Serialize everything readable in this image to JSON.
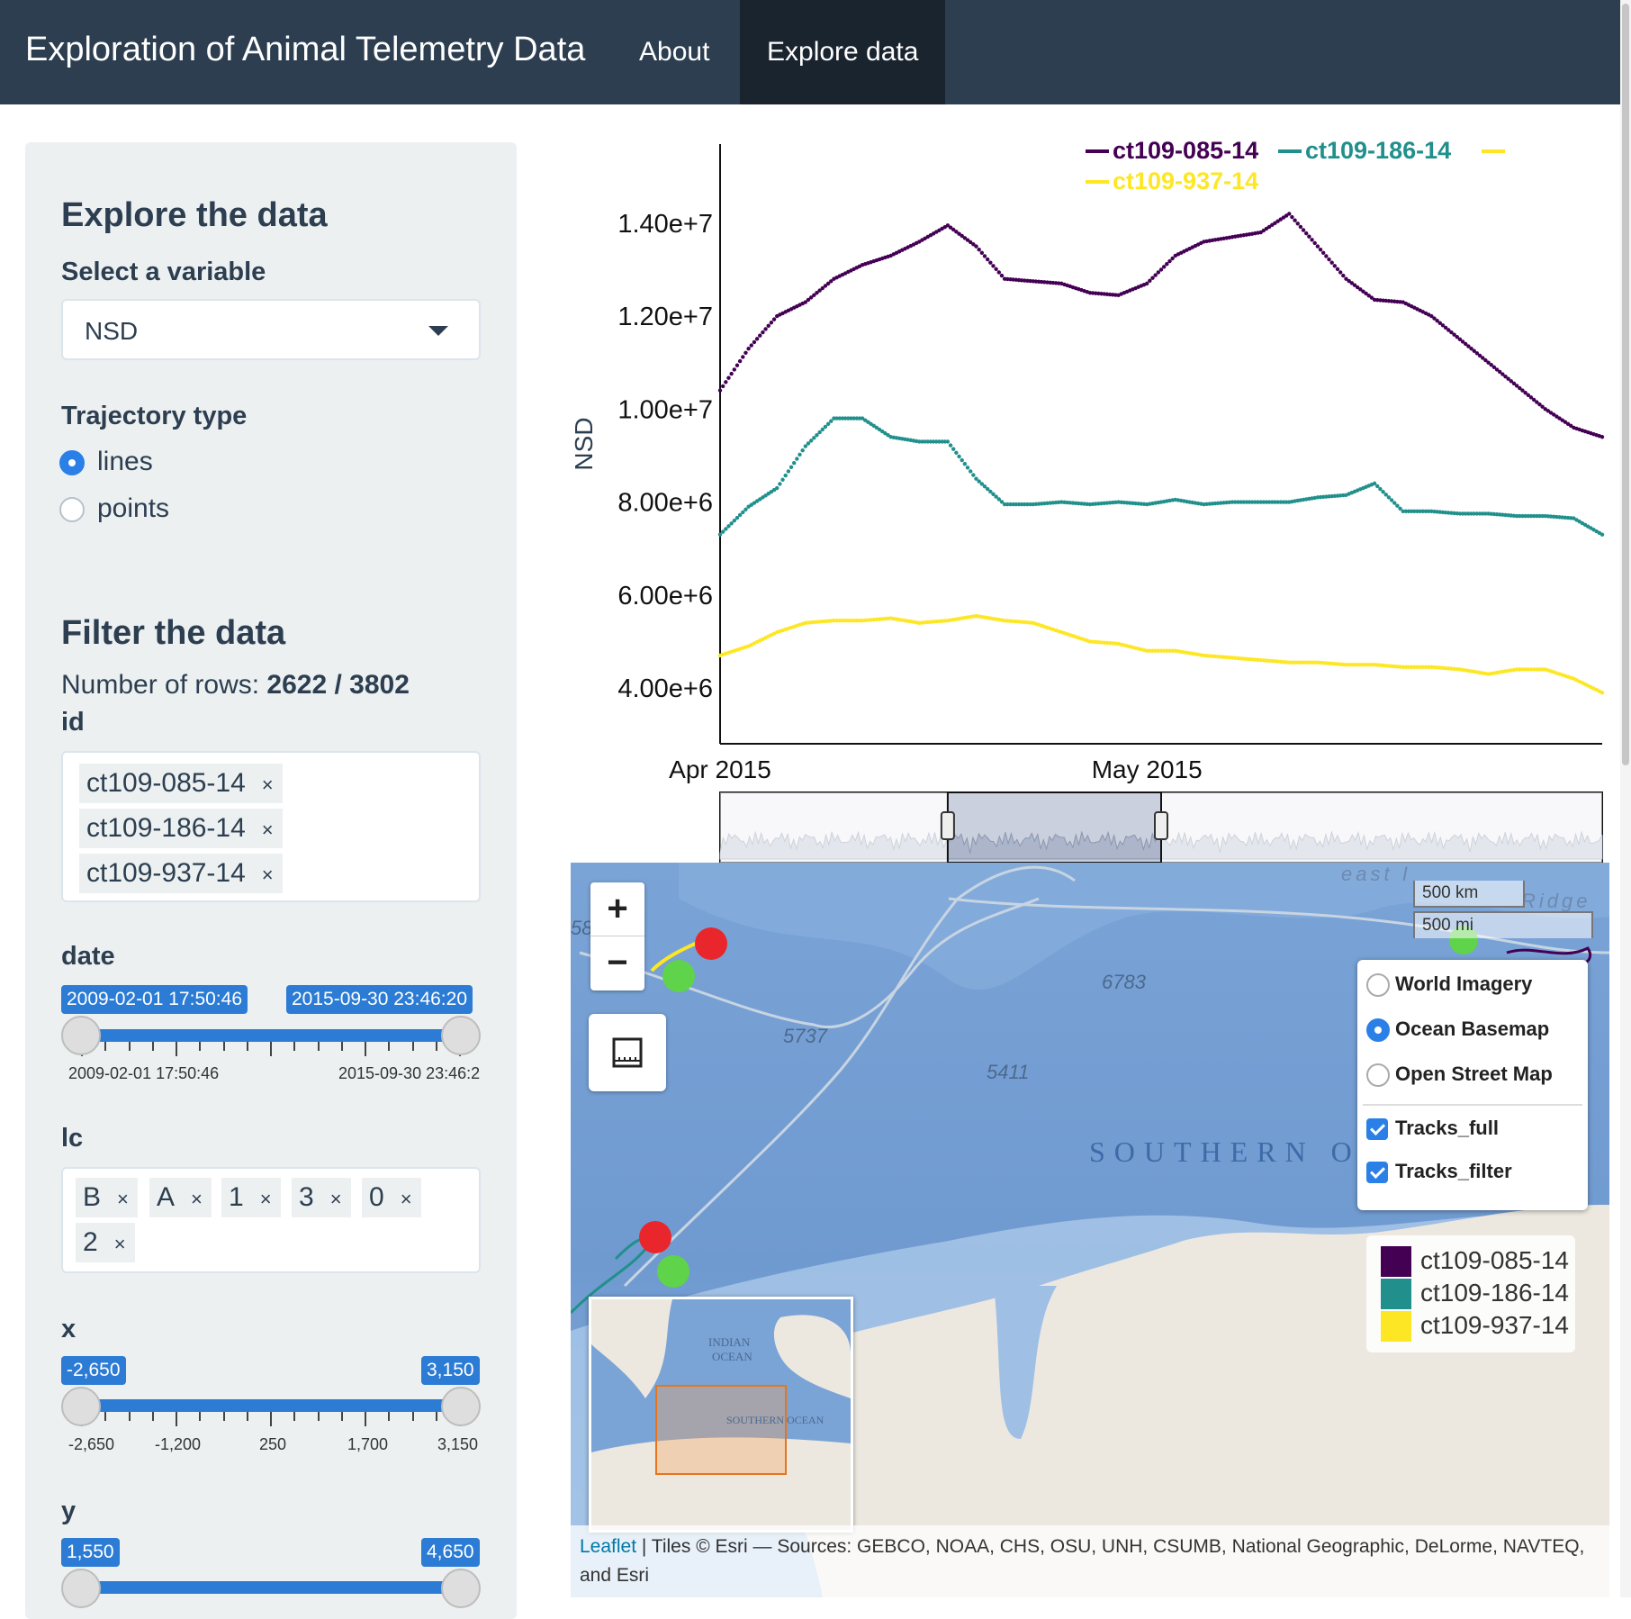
{
  "navbar": {
    "brand": "Exploration of Animal Telemetry Data",
    "tabs": [
      {
        "label": "About",
        "active": false
      },
      {
        "label": "Explore data",
        "active": true
      }
    ],
    "colors": {
      "bg": "#2c3e50",
      "active_bg": "#1a242f"
    }
  },
  "sidebar": {
    "explore": {
      "heading": "Explore the data",
      "variable_label": "Select a variable",
      "variable_value": "NSD",
      "trajectory_label": "Trajectory type",
      "trajectory_options": [
        {
          "label": "lines",
          "selected": true
        },
        {
          "label": "points",
          "selected": false
        }
      ]
    },
    "filter": {
      "heading": "Filter the data",
      "rows_prefix": "Number of rows: ",
      "rows_value": "2622 / 3802",
      "id_label": "id",
      "id_chips": [
        "ct109-085-14",
        "ct109-186-14",
        "ct109-937-14"
      ],
      "date_label": "date",
      "date_slider": {
        "from": "2009-02-01 17:50:46",
        "to": "2015-09-30 23:46:20",
        "min_label": "2009-02-01 17:50:46",
        "max_label": "2015-09-30 23:46:2",
        "fraction_from": 0,
        "fraction_to": 1
      },
      "lc_label": "lc",
      "lc_chips": [
        "B",
        "A",
        "1",
        "3",
        "0",
        "2"
      ],
      "x_label": "x",
      "x_slider": {
        "from": "-2,650",
        "to": "3,150",
        "tick_labels": [
          "-2,650",
          "-1,200",
          "250",
          "1,700",
          "3,150"
        ]
      },
      "y_label": "y",
      "y_slider": {
        "from": "1,550",
        "to": "4,650"
      }
    }
  },
  "chart_data": {
    "type": "scatter",
    "ylabel": "NSD",
    "xlabel": "",
    "y_tick_labels": [
      "1.40e+7",
      "1.20e+7",
      "1.00e+7",
      "8.00e+6",
      "6.00e+6",
      "4.00e+6"
    ],
    "y_ticks": [
      14000000,
      12000000,
      10000000,
      8000000,
      6000000,
      4000000
    ],
    "ylim": [
      2800000,
      15700000
    ],
    "x_tick_labels": [
      "Apr 2015",
      "May 2015"
    ],
    "x_ticks": [
      "2015-04-01",
      "2015-05-01"
    ],
    "xlim": [
      "2015-04-01",
      "2015-06-02"
    ],
    "legend": [
      "ct109-085-14",
      "ct109-186-14",
      "ct109-937-14"
    ],
    "range_selector": {
      "from": "2015-04-17",
      "to": "2015-05-02"
    },
    "series": [
      {
        "name": "ct109-085-14",
        "color": "#440154",
        "x": [
          "2015-04-01",
          "2015-04-03",
          "2015-04-05",
          "2015-04-07",
          "2015-04-09",
          "2015-04-11",
          "2015-04-13",
          "2015-04-15",
          "2015-04-17",
          "2015-04-19",
          "2015-04-21",
          "2015-04-23",
          "2015-04-25",
          "2015-04-27",
          "2015-04-29",
          "2015-05-01",
          "2015-05-03",
          "2015-05-05",
          "2015-05-07",
          "2015-05-09",
          "2015-05-11",
          "2015-05-13",
          "2015-05-15",
          "2015-05-17",
          "2015-05-19",
          "2015-05-21",
          "2015-05-23",
          "2015-05-25",
          "2015-05-27",
          "2015-05-29",
          "2015-05-31",
          "2015-06-02"
        ],
        "y": [
          10400000,
          11300000,
          12000000,
          12300000,
          12800000,
          13100000,
          13300000,
          13600000,
          13950000,
          13500000,
          12800000,
          12750000,
          12700000,
          12500000,
          12450000,
          12700000,
          13300000,
          13600000,
          13700000,
          13800000,
          14200000,
          13500000,
          12800000,
          12350000,
          12300000,
          12000000,
          11500000,
          11000000,
          10500000,
          10000000,
          9600000,
          9400000
        ]
      },
      {
        "name": "ct109-186-14",
        "color": "#21908c",
        "x": [
          "2015-04-01",
          "2015-04-03",
          "2015-04-05",
          "2015-04-07",
          "2015-04-09",
          "2015-04-11",
          "2015-04-13",
          "2015-04-15",
          "2015-04-17",
          "2015-04-19",
          "2015-04-21",
          "2015-04-23",
          "2015-04-25",
          "2015-04-27",
          "2015-04-29",
          "2015-05-01",
          "2015-05-03",
          "2015-05-05",
          "2015-05-07",
          "2015-05-09",
          "2015-05-11",
          "2015-05-13",
          "2015-05-15",
          "2015-05-17",
          "2015-05-19",
          "2015-05-21",
          "2015-05-23",
          "2015-05-25",
          "2015-05-27",
          "2015-05-29",
          "2015-05-31",
          "2015-06-02"
        ],
        "y": [
          7300000,
          7900000,
          8300000,
          9200000,
          9800000,
          9800000,
          9400000,
          9300000,
          9300000,
          8500000,
          7950000,
          7950000,
          8000000,
          7950000,
          8000000,
          7950000,
          8050000,
          7950000,
          8000000,
          8000000,
          8000000,
          8100000,
          8150000,
          8400000,
          7800000,
          7800000,
          7750000,
          7750000,
          7700000,
          7700000,
          7650000,
          7300000
        ]
      },
      {
        "name": "ct109-937-14",
        "color": "#fde725",
        "x": [
          "2015-04-01",
          "2015-04-03",
          "2015-04-05",
          "2015-04-07",
          "2015-04-09",
          "2015-04-11",
          "2015-04-13",
          "2015-04-15",
          "2015-04-17",
          "2015-04-19",
          "2015-04-21",
          "2015-04-23",
          "2015-04-25",
          "2015-04-27",
          "2015-04-29",
          "2015-05-01",
          "2015-05-03",
          "2015-05-05",
          "2015-05-07",
          "2015-05-09",
          "2015-05-11",
          "2015-05-13",
          "2015-05-15",
          "2015-05-17",
          "2015-05-19",
          "2015-05-21",
          "2015-05-23",
          "2015-05-25",
          "2015-05-27",
          "2015-05-29",
          "2015-05-31",
          "2015-06-02"
        ],
        "y": [
          4700000,
          4900000,
          5200000,
          5400000,
          5450000,
          5450000,
          5500000,
          5400000,
          5450000,
          5550000,
          5450000,
          5400000,
          5200000,
          5000000,
          4950000,
          4800000,
          4800000,
          4700000,
          4650000,
          4600000,
          4550000,
          4550000,
          4500000,
          4500000,
          4450000,
          4450000,
          4400000,
          4300000,
          4400000,
          4400000,
          4200000,
          3900000
        ]
      }
    ]
  },
  "map": {
    "zoom_in": "+",
    "zoom_out": "−",
    "measure_icon": "ruler-icon",
    "scale": {
      "km": "500 km",
      "mi": "500 mi"
    },
    "labels": {
      "depth_1": "6783",
      "depth_2": "5737",
      "depth_3": "5411",
      "depth_4": "58",
      "ocean": "SOUTHERN O",
      "ridge": "Ridge",
      "east": "east I"
    },
    "basemaps": [
      {
        "label": "World Imagery",
        "selected": false
      },
      {
        "label": "Ocean Basemap",
        "selected": true
      },
      {
        "label": "Open Street Map",
        "selected": false
      }
    ],
    "overlays": [
      {
        "label": "Tracks_full",
        "checked": true
      },
      {
        "label": "Tracks_filter",
        "checked": true
      }
    ],
    "legend": [
      {
        "label": "ct109-085-14",
        "color": "#440154"
      },
      {
        "label": "ct109-186-14",
        "color": "#21908c"
      },
      {
        "label": "ct109-937-14",
        "color": "#fde725"
      }
    ],
    "minimap_labels": {
      "indian": "INDIAN",
      "ocean": "OCEAN",
      "southern": "SOUTHERN OCEAN"
    },
    "attribution_link": "Leaflet",
    "attribution_text": " | Tiles © Esri — Sources: GEBCO, NOAA, CHS, OSU, UNH, CSUMB, National Geographic, DeLorme, NAVTEQ, and Esri"
  }
}
